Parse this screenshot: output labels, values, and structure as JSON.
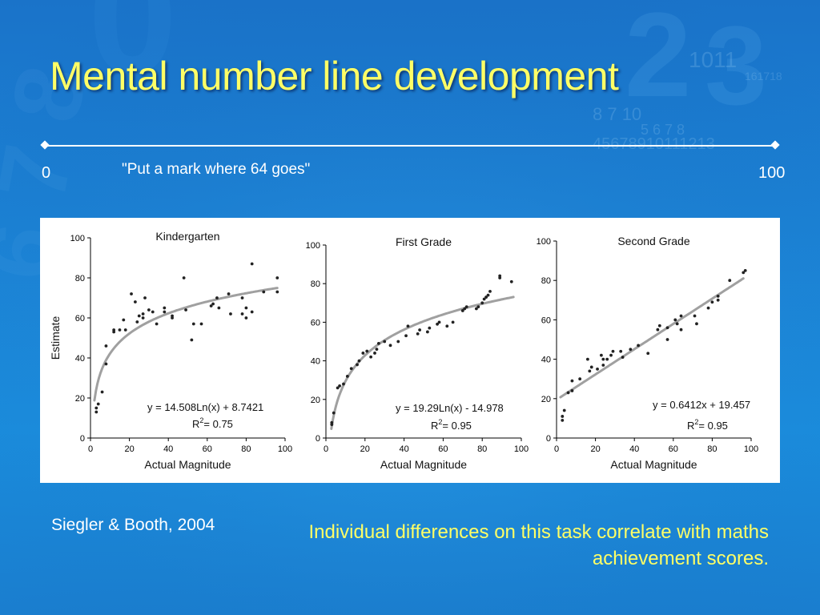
{
  "slide": {
    "title": "Mental number line development",
    "number_line": {
      "left_label": "0",
      "right_label": "100",
      "prompt": "\"Put a mark where 64 goes\""
    },
    "citation": "Siegler & Booth, 2004",
    "note": "Individual differences on this task correlate with maths achievement scores.",
    "colors": {
      "title": "#ffff66",
      "note": "#ffff66",
      "fit_line": "#a0a0a0",
      "points": "#222222"
    }
  },
  "chart_data": [
    {
      "type": "scatter",
      "title": "Kindergarten",
      "xlabel": "Actual Magnitude",
      "ylabel": "Estimate",
      "xlim": [
        0,
        100
      ],
      "ylim": [
        0,
        100
      ],
      "xticks": [
        "0",
        "20",
        "40",
        "60",
        "80",
        "100"
      ],
      "yticks": [
        "0",
        "20",
        "40",
        "60",
        "80",
        "100"
      ],
      "fit": {
        "kind": "log",
        "a": 14.508,
        "b": 8.7421
      },
      "equation": "y = 14.508Ln(x) + 8.7421",
      "r2_prefix": "R",
      "r2_sup": "2",
      "r2_value": "= 0.75",
      "points": [
        [
          3,
          13
        ],
        [
          3,
          15
        ],
        [
          4,
          17
        ],
        [
          6,
          23
        ],
        [
          8,
          46
        ],
        [
          8,
          37
        ],
        [
          12,
          54
        ],
        [
          12,
          53
        ],
        [
          15,
          54
        ],
        [
          17,
          59
        ],
        [
          18,
          54
        ],
        [
          21,
          72
        ],
        [
          23,
          68
        ],
        [
          24,
          58
        ],
        [
          25,
          61
        ],
        [
          27,
          62
        ],
        [
          27,
          60
        ],
        [
          28,
          70
        ],
        [
          30,
          64
        ],
        [
          32,
          63
        ],
        [
          34,
          57
        ],
        [
          38,
          65
        ],
        [
          38,
          63
        ],
        [
          42,
          60
        ],
        [
          42,
          61
        ],
        [
          48,
          80
        ],
        [
          49,
          64
        ],
        [
          52,
          49
        ],
        [
          53,
          57
        ],
        [
          57,
          57
        ],
        [
          62,
          66
        ],
        [
          63,
          67
        ],
        [
          65,
          70
        ],
        [
          66,
          65
        ],
        [
          71,
          72
        ],
        [
          72,
          62
        ],
        [
          78,
          62
        ],
        [
          78,
          70
        ],
        [
          80,
          60
        ],
        [
          80,
          65
        ],
        [
          83,
          87
        ],
        [
          83,
          63
        ],
        [
          89,
          73
        ],
        [
          96,
          80
        ],
        [
          96,
          73
        ]
      ]
    },
    {
      "type": "scatter",
      "title": "First Grade",
      "xlabel": "Actual Magnitude",
      "ylabel": "",
      "xlim": [
        0,
        100
      ],
      "ylim": [
        0,
        100
      ],
      "xticks": [
        "0",
        "20",
        "40",
        "60",
        "80",
        "100"
      ],
      "yticks": [
        "0",
        "20",
        "40",
        "60",
        "80",
        "100"
      ],
      "fit": {
        "kind": "log",
        "a": 19.29,
        "b": -14.978
      },
      "equation": "y = 19.29Ln(x) - 14.978",
      "r2_prefix": "R",
      "r2_sup": "2",
      "r2_value": "= 0.95",
      "points": [
        [
          3,
          7
        ],
        [
          3,
          8
        ],
        [
          4,
          13
        ],
        [
          6,
          26
        ],
        [
          7,
          27
        ],
        [
          9,
          28
        ],
        [
          11,
          32
        ],
        [
          13,
          36
        ],
        [
          16,
          38
        ],
        [
          17,
          40
        ],
        [
          19,
          44
        ],
        [
          21,
          45
        ],
        [
          23,
          42
        ],
        [
          25,
          44
        ],
        [
          26,
          46
        ],
        [
          27,
          49
        ],
        [
          30,
          50
        ],
        [
          33,
          48
        ],
        [
          37,
          50
        ],
        [
          41,
          53
        ],
        [
          42,
          58
        ],
        [
          47,
          54
        ],
        [
          48,
          56
        ],
        [
          52,
          55
        ],
        [
          53,
          57
        ],
        [
          57,
          59
        ],
        [
          58,
          60
        ],
        [
          62,
          58
        ],
        [
          65,
          60
        ],
        [
          70,
          66
        ],
        [
          71,
          67
        ],
        [
          72,
          68
        ],
        [
          77,
          67
        ],
        [
          78,
          68
        ],
        [
          80,
          70
        ],
        [
          81,
          72
        ],
        [
          82,
          73
        ],
        [
          83,
          74
        ],
        [
          84,
          76
        ],
        [
          89,
          83
        ],
        [
          89,
          84
        ],
        [
          95,
          81
        ]
      ]
    },
    {
      "type": "scatter",
      "title": "Second Grade",
      "xlabel": "Actual Magnitude",
      "ylabel": "",
      "xlim": [
        0,
        100
      ],
      "ylim": [
        0,
        100
      ],
      "xticks": [
        "0",
        "20",
        "40",
        "60",
        "80",
        "100"
      ],
      "yticks": [
        "0",
        "20",
        "40",
        "60",
        "80",
        "100"
      ],
      "fit": {
        "kind": "linear",
        "a": 0.6412,
        "b": 19.457
      },
      "equation": "y = 0.6412x + 19.457",
      "r2_prefix": "R",
      "r2_sup": "2",
      "r2_value": "= 0.95",
      "points": [
        [
          3,
          11
        ],
        [
          3,
          9
        ],
        [
          4,
          14
        ],
        [
          6,
          23
        ],
        [
          8,
          29
        ],
        [
          8,
          24
        ],
        [
          12,
          30
        ],
        [
          16,
          40
        ],
        [
          17,
          34
        ],
        [
          18,
          36
        ],
        [
          21,
          35
        ],
        [
          23,
          42
        ],
        [
          24,
          37
        ],
        [
          24,
          40
        ],
        [
          26,
          40
        ],
        [
          28,
          42
        ],
        [
          29,
          44
        ],
        [
          33,
          44
        ],
        [
          34,
          41
        ],
        [
          38,
          45
        ],
        [
          42,
          47
        ],
        [
          47,
          43
        ],
        [
          52,
          55
        ],
        [
          53,
          57
        ],
        [
          57,
          50
        ],
        [
          57,
          56
        ],
        [
          61,
          60
        ],
        [
          62,
          58
        ],
        [
          64,
          62
        ],
        [
          64,
          55
        ],
        [
          71,
          62
        ],
        [
          72,
          58
        ],
        [
          78,
          66
        ],
        [
          80,
          69
        ],
        [
          83,
          72
        ],
        [
          83,
          70
        ],
        [
          89,
          80
        ],
        [
          96,
          84
        ],
        [
          97,
          85
        ]
      ]
    }
  ]
}
